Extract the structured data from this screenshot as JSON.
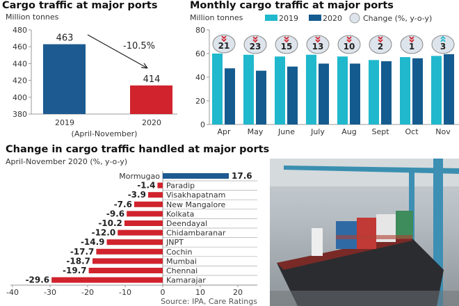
{
  "colors": {
    "c2019": "#1fb8cc",
    "c2020": "#145b8f",
    "blue": "#1d5a91",
    "red": "#d0232d",
    "down": "#d0232d",
    "up": "#1fb8cc",
    "bubble": "#dde4ec"
  },
  "chart_data": [
    {
      "type": "bar",
      "title": "Cargo traffic at major ports",
      "ylabel": "Million tonnes",
      "categories": [
        "2019",
        "2020"
      ],
      "values": [
        463,
        414
      ],
      "period_label": "(April-November)",
      "annotation": "-10.5%",
      "ylim": [
        380,
        480
      ],
      "yticks": [
        380,
        400,
        420,
        440,
        460,
        480
      ]
    },
    {
      "type": "bar",
      "title": "Monthly cargo traffic at major ports",
      "ylabel": "Million tonnes",
      "categories": [
        "Apr",
        "May",
        "June",
        "July",
        "Aug",
        "Sept",
        "Oct",
        "Nov"
      ],
      "series": [
        {
          "name": "2019",
          "values": [
            60,
            59,
            57.5,
            59,
            57.5,
            54.5,
            57,
            58
          ]
        },
        {
          "name": "2020",
          "values": [
            47.5,
            45.5,
            49,
            51.5,
            51.5,
            53.5,
            56,
            59.5
          ]
        }
      ],
      "change_label": "Change (%, y-o-y)",
      "change": [
        -21,
        -23,
        -15,
        -13,
        -10,
        -2,
        -1,
        3
      ],
      "change_text": [
        "21",
        "23",
        "15",
        "13",
        "10",
        "2",
        "1",
        "3"
      ],
      "ylim": [
        0,
        80
      ],
      "yticks": [
        0,
        20,
        40,
        60,
        80
      ]
    },
    {
      "type": "bar",
      "orientation": "horizontal",
      "title": "Change in cargo traffic handled at major ports",
      "subtitle": "April-November 2020 (%, y-o-y)",
      "categories": [
        "Mormugao",
        "Paradip",
        "Visakhapatnam",
        "New Mangalore",
        "Kolkata",
        "Deendayal",
        "Chidambaranar",
        "JNPT",
        "Cochin",
        "Mumbai",
        "Chennai",
        "Kamarajar"
      ],
      "values": [
        17.6,
        -1.4,
        -3.9,
        -7.6,
        -9.6,
        -10.2,
        -12.0,
        -14.9,
        -17.7,
        -18.7,
        -19.7,
        -29.6
      ],
      "value_labels": [
        "17.6",
        "-1.4",
        "-3.9",
        "-7.6",
        "-9.6",
        "-10.2",
        "-12.0",
        "-14.9",
        "-17.7",
        "-18.7",
        "-19.7",
        "-29.6"
      ],
      "xlim": [
        -40,
        25
      ],
      "xticks": [
        -40,
        -30,
        -20,
        -10,
        0,
        10,
        20
      ],
      "source": "Source: IPA, Care Ratings"
    }
  ]
}
